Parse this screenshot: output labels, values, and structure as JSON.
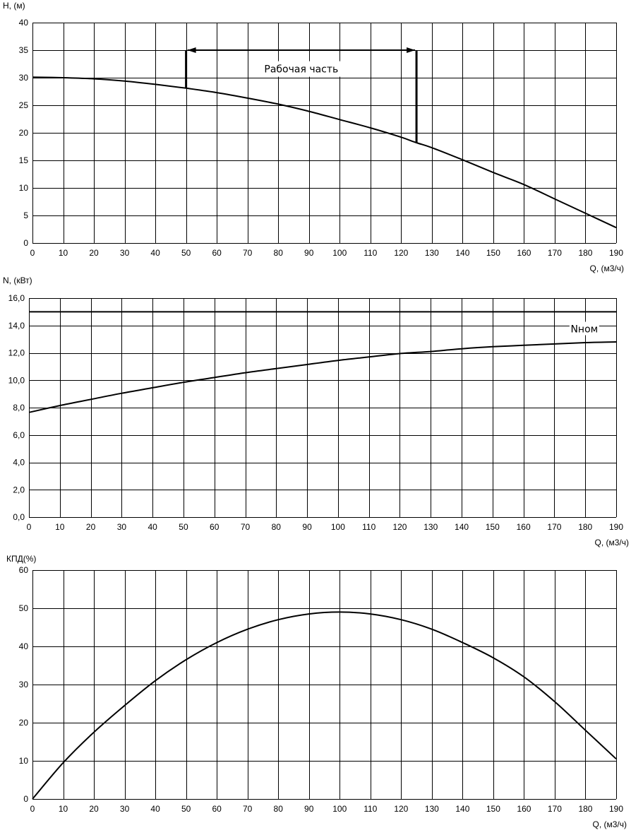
{
  "chart_data": [
    {
      "type": "line",
      "title": "",
      "ylabel": "H, (м)",
      "xlabel": "Q, (м3/ч)",
      "xlim": [
        0,
        190
      ],
      "ylim": [
        0,
        40
      ],
      "grid": true,
      "x_ticks": [
        "0",
        "10",
        "20",
        "30",
        "40",
        "50",
        "60",
        "70",
        "80",
        "90",
        "100",
        "110",
        "120",
        "130",
        "140",
        "150",
        "160",
        "170",
        "180",
        "190"
      ],
      "y_ticks": [
        "0",
        "5",
        "10",
        "15",
        "20",
        "25",
        "30",
        "35",
        "40"
      ],
      "series": [
        {
          "x": [
            0,
            10,
            20,
            30,
            40,
            50,
            60,
            70,
            80,
            90,
            100,
            110,
            120,
            125,
            130,
            140,
            150,
            160,
            170,
            180,
            190
          ],
          "values": [
            30.1,
            30.0,
            29.8,
            29.4,
            28.8,
            28.1,
            27.3,
            26.3,
            25.2,
            23.9,
            22.4,
            20.9,
            19.2,
            18.2,
            17.3,
            15.1,
            12.8,
            10.6,
            8.0,
            5.4,
            2.8
          ]
        }
      ],
      "annotations": [
        {
          "text": "Рабочая часть",
          "bracket_x": [
            50,
            125
          ],
          "bracket_y": 35,
          "left_foot_y": 28.1,
          "right_foot_y": 18.2,
          "label_x": 87.5,
          "label_y": 31.2
        }
      ]
    },
    {
      "type": "line",
      "title": "",
      "ylabel": "N, (кВт)",
      "xlabel": "Q, (м3/ч)",
      "xlim": [
        0,
        190
      ],
      "ylim": [
        0,
        16
      ],
      "grid": true,
      "x_ticks": [
        "0",
        "10",
        "20",
        "30",
        "40",
        "50",
        "60",
        "70",
        "80",
        "90",
        "100",
        "110",
        "120",
        "130",
        "140",
        "150",
        "160",
        "170",
        "180",
        "190"
      ],
      "y_ticks": [
        "0,0",
        "2,0",
        "4,0",
        "6,0",
        "8,0",
        "10,0",
        "12,0",
        "14,0",
        "16,0"
      ],
      "series": [
        {
          "x": [
            0,
            10,
            20,
            30,
            40,
            50,
            60,
            70,
            80,
            90,
            100,
            110,
            120,
            130,
            140,
            150,
            160,
            170,
            180,
            190
          ],
          "values": [
            7.65,
            8.15,
            8.6,
            9.05,
            9.45,
            9.85,
            10.2,
            10.55,
            10.85,
            11.15,
            11.45,
            11.7,
            11.95,
            12.1,
            12.3,
            12.45,
            12.55,
            12.65,
            12.75,
            12.8
          ]
        },
        {
          "name": "Nном",
          "x": [
            0,
            190
          ],
          "values": [
            15.0,
            15.0
          ]
        }
      ],
      "annotations": [
        {
          "text": "Nном",
          "label_x": 179,
          "label_y": 13.6
        }
      ]
    },
    {
      "type": "line",
      "title": "",
      "ylabel": "КПД(%)",
      "xlabel": "Q, (м3/ч)",
      "xlim": [
        0,
        190
      ],
      "ylim": [
        0,
        60
      ],
      "grid": true,
      "x_ticks": [
        "0",
        "10",
        "20",
        "30",
        "40",
        "50",
        "60",
        "70",
        "80",
        "90",
        "100",
        "110",
        "120",
        "130",
        "140",
        "150",
        "160",
        "170",
        "180",
        "190"
      ],
      "y_ticks": [
        "0",
        "10",
        "20",
        "30",
        "40",
        "50",
        "60"
      ],
      "series": [
        {
          "x": [
            0,
            10,
            20,
            30,
            40,
            50,
            60,
            70,
            80,
            90,
            100,
            110,
            120,
            130,
            140,
            150,
            160,
            170,
            180,
            190
          ],
          "values": [
            0,
            9.5,
            17.5,
            24.5,
            31.0,
            36.5,
            41.0,
            44.5,
            47.0,
            48.5,
            49.0,
            48.5,
            47.0,
            44.5,
            41.0,
            37.0,
            32.0,
            25.5,
            18.0,
            10.5
          ]
        }
      ],
      "annotations": []
    }
  ]
}
